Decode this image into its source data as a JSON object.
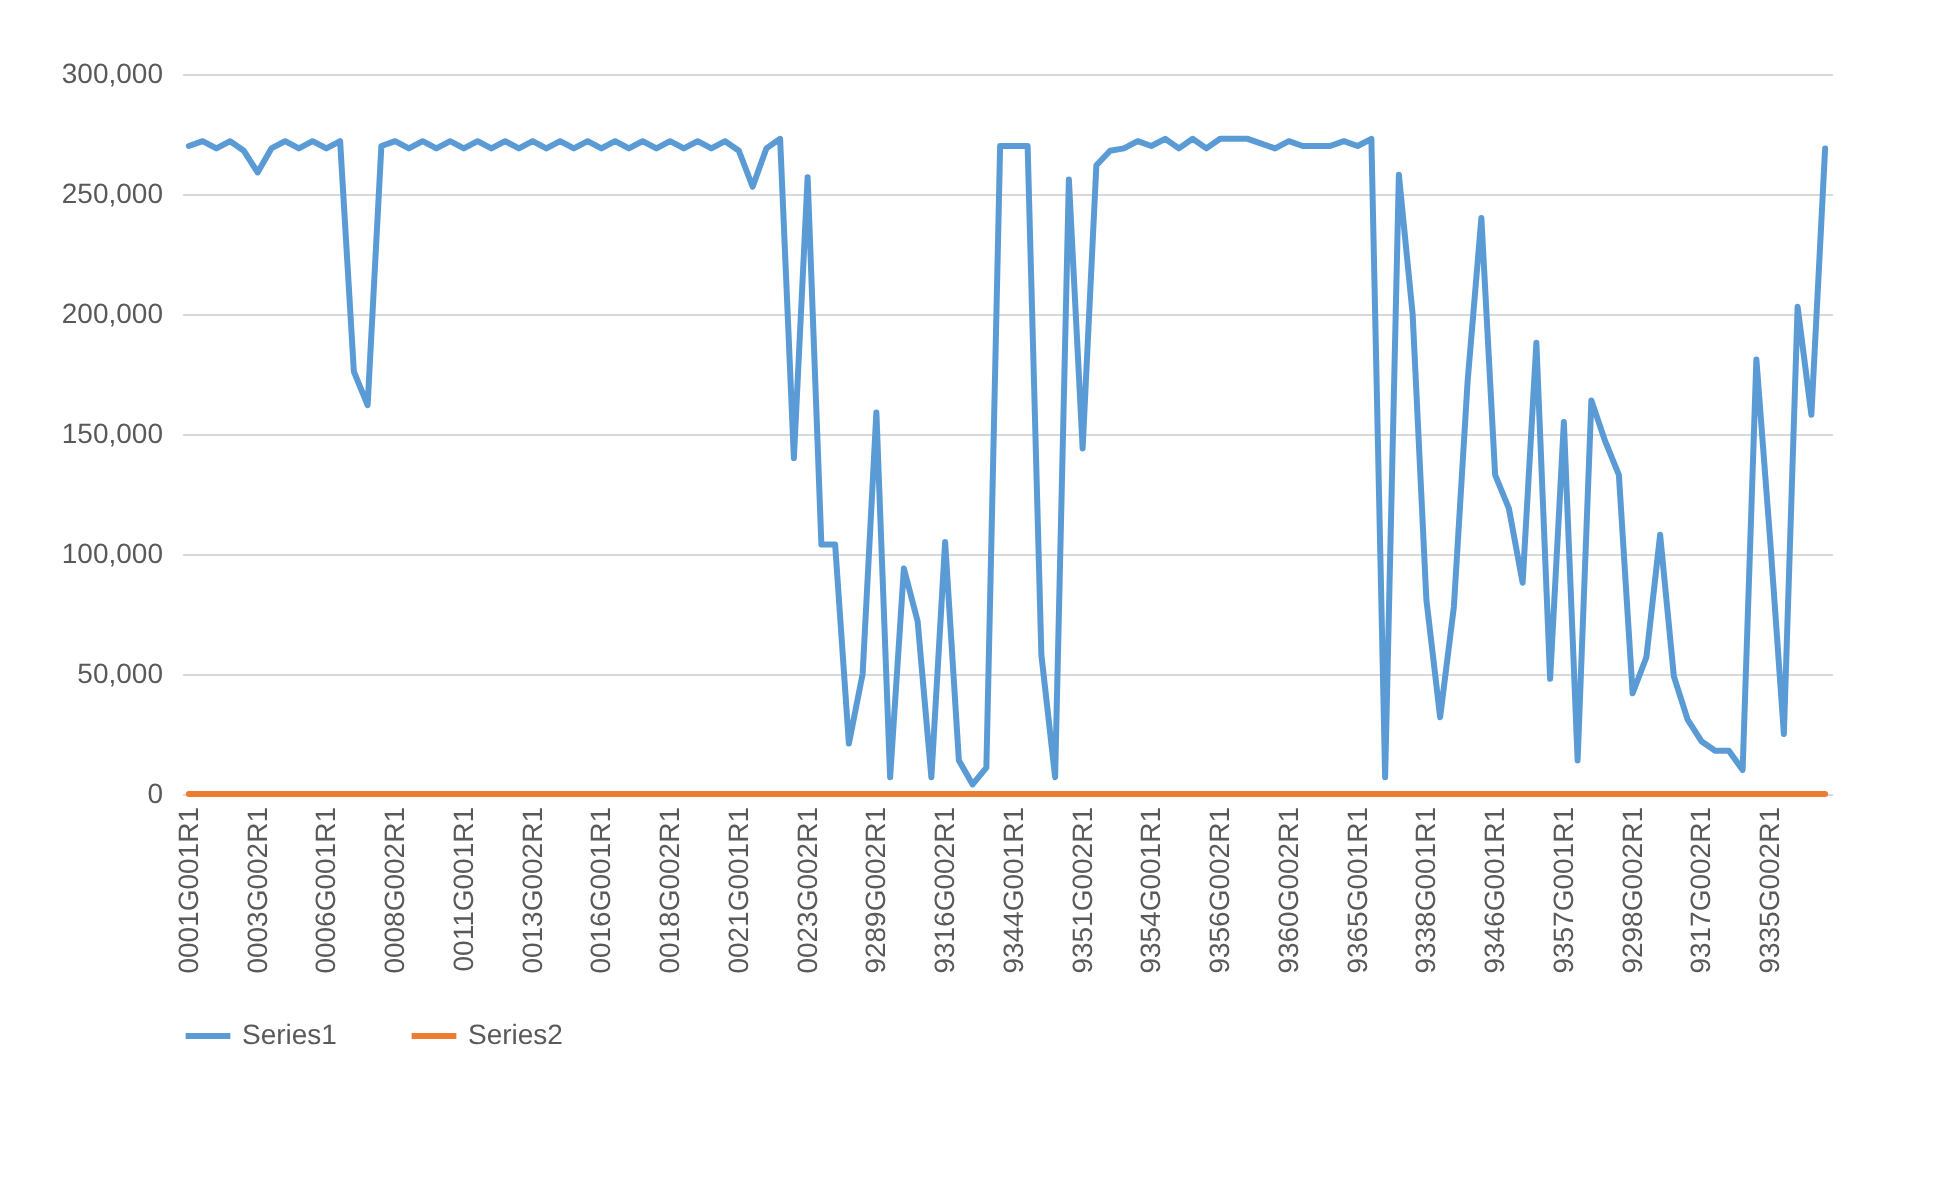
{
  "chart_data": {
    "type": "line",
    "categories": [
      "0001G001R1",
      null,
      null,
      null,
      null,
      "0003G002R1",
      null,
      null,
      null,
      null,
      "0006G001R1",
      null,
      null,
      null,
      null,
      "0008G002R1",
      null,
      null,
      null,
      null,
      "0011G001R1",
      null,
      null,
      null,
      null,
      "0013G002R1",
      null,
      null,
      null,
      null,
      "0016G001R1",
      null,
      null,
      null,
      null,
      "0018G002R1",
      null,
      null,
      null,
      null,
      "0021G001R1",
      null,
      null,
      null,
      null,
      "0023G002R1",
      null,
      null,
      null,
      null,
      "9289G002R1",
      null,
      null,
      null,
      null,
      "9316G002R1",
      null,
      null,
      null,
      null,
      "9344G001R1",
      null,
      null,
      null,
      null,
      "9351G002R1",
      null,
      null,
      null,
      null,
      "9354G001R1",
      null,
      null,
      null,
      null,
      "9356G002R1",
      null,
      null,
      null,
      null,
      "9360G002R1",
      null,
      null,
      null,
      null,
      "9365G001R1",
      null,
      null,
      null,
      null,
      "9338G001R1",
      null,
      null,
      null,
      null,
      "9346G001R1",
      null,
      null,
      null,
      null,
      "9357G001R1",
      null,
      null,
      null,
      null,
      "9298G002R1",
      null,
      null,
      null,
      null,
      "9317G002R1",
      null,
      null,
      null,
      null,
      "9335G002R1",
      null,
      null,
      null,
      null
    ],
    "series": [
      {
        "name": "Series1",
        "color": "#5b9bd5",
        "values": [
          270000,
          272000,
          269000,
          272000,
          268000,
          259000,
          269000,
          272000,
          269000,
          272000,
          269000,
          272000,
          176000,
          162000,
          270000,
          272000,
          269000,
          272000,
          269000,
          272000,
          269000,
          272000,
          269000,
          272000,
          269000,
          272000,
          269000,
          272000,
          269000,
          272000,
          269000,
          272000,
          269000,
          272000,
          269000,
          272000,
          269000,
          272000,
          269000,
          272000,
          268000,
          253000,
          269000,
          273000,
          140000,
          257000,
          104000,
          104000,
          21000,
          50000,
          159000,
          7000,
          94000,
          72000,
          7000,
          105000,
          14000,
          4000,
          11000,
          270000,
          270000,
          270000,
          58000,
          7000,
          256000,
          144000,
          262000,
          268000,
          269000,
          272000,
          270000,
          273000,
          269000,
          273000,
          269000,
          273000,
          273000,
          273000,
          271000,
          269000,
          272000,
          270000,
          270000,
          270000,
          272000,
          270000,
          273000,
          7000,
          258000,
          200000,
          81000,
          32000,
          78000,
          172000,
          240000,
          133000,
          119000,
          88000,
          188000,
          48000,
          155000,
          14000,
          164000,
          147000,
          133000,
          42000,
          57000,
          108000,
          49000,
          31000,
          22000,
          18000,
          18000,
          10000,
          181000,
          106000,
          25000,
          203000,
          158000,
          269000
        ]
      },
      {
        "name": "Series2",
        "color": "#ed7d31",
        "values": [
          0,
          0,
          0,
          0,
          0,
          0,
          0,
          0,
          0,
          0,
          0,
          0,
          0,
          0,
          0,
          0,
          0,
          0,
          0,
          0,
          0,
          0,
          0,
          0,
          0,
          0,
          0,
          0,
          0,
          0,
          0,
          0,
          0,
          0,
          0,
          0,
          0,
          0,
          0,
          0,
          0,
          0,
          0,
          0,
          0,
          0,
          0,
          0,
          0,
          0,
          0,
          0,
          0,
          0,
          0,
          0,
          0,
          0,
          0,
          0,
          0,
          0,
          0,
          0,
          0,
          0,
          0,
          0,
          0,
          0,
          0,
          0,
          0,
          0,
          0,
          0,
          0,
          0,
          0,
          0,
          0,
          0,
          0,
          0,
          0,
          0,
          0,
          0,
          0,
          0,
          0,
          0,
          0,
          0,
          0,
          0,
          0,
          0,
          0,
          0,
          0,
          0,
          0,
          0,
          0,
          0,
          0,
          0,
          0,
          0,
          0,
          0,
          0,
          0,
          0,
          0,
          0,
          0,
          0,
          0
        ]
      }
    ],
    "ylim": [
      0,
      300000
    ],
    "yticks": [
      0,
      {
        "value": 50000,
        "label": "50,000"
      },
      {
        "value": 100000,
        "label": "100,000"
      },
      {
        "value": 150000,
        "label": "150,000"
      },
      {
        "value": 200000,
        "label": "200,000"
      },
      {
        "value": 250000,
        "label": "250,000"
      },
      {
        "value": 300000,
        "label": "300,000"
      }
    ],
    "grid": "y",
    "legend": "bottom",
    "marker": "none",
    "line_style": "solid"
  }
}
